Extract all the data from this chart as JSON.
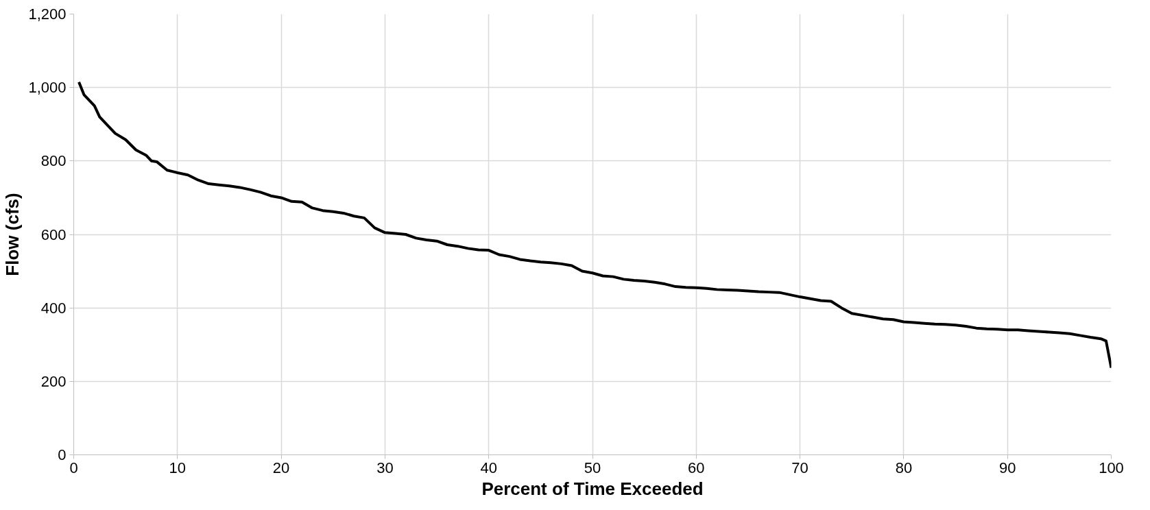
{
  "chart_data": {
    "type": "line",
    "xlabel": "Percent of Time Exceeded",
    "ylabel": "Flow (cfs)",
    "x": [
      0.5,
      1,
      2,
      2.5,
      4,
      5,
      6,
      7,
      7.5,
      8,
      9,
      10,
      11,
      12,
      13,
      14,
      15,
      16,
      17,
      18,
      19,
      20,
      21,
      22,
      23,
      24,
      25,
      26,
      27,
      28,
      29,
      30,
      31,
      32,
      33,
      34,
      35,
      36,
      37,
      38,
      39,
      40,
      41,
      42,
      43,
      44,
      45,
      46,
      47,
      48,
      49,
      50,
      51,
      52,
      53,
      54,
      55,
      56,
      57,
      58,
      59,
      60,
      61,
      62,
      63,
      64,
      65,
      66,
      67,
      68,
      69,
      70,
      71,
      72,
      73,
      74,
      75,
      76,
      77,
      78,
      79,
      80,
      81,
      82,
      83,
      84,
      85,
      86,
      87,
      88,
      89,
      90,
      91,
      92,
      93,
      94,
      95,
      96,
      97,
      98,
      99,
      99.5,
      100
    ],
    "series": [
      {
        "color": "#000000",
        "values": [
          1015,
          980,
          950,
          920,
          875,
          858,
          830,
          815,
          800,
          798,
          775,
          768,
          762,
          748,
          738,
          735,
          732,
          728,
          722,
          715,
          705,
          700,
          690,
          688,
          672,
          665,
          662,
          658,
          650,
          645,
          618,
          605,
          603,
          600,
          590,
          585,
          582,
          572,
          568,
          562,
          558,
          557,
          545,
          540,
          532,
          528,
          525,
          523,
          520,
          515,
          500,
          495,
          487,
          485,
          478,
          475,
          473,
          470,
          465,
          458,
          456,
          455,
          453,
          450,
          449,
          448,
          446,
          444,
          443,
          442,
          436,
          430,
          425,
          420,
          418,
          400,
          385,
          380,
          375,
          370,
          368,
          362,
          360,
          358,
          356,
          355,
          353,
          350,
          345,
          343,
          342,
          340,
          340,
          338,
          336,
          334,
          332,
          330,
          325,
          320,
          316,
          310,
          237
        ]
      }
    ],
    "xlim": [
      0,
      100
    ],
    "ylim": [
      0,
      1200
    ],
    "xticks": [
      0,
      10,
      20,
      30,
      40,
      50,
      60,
      70,
      80,
      90,
      100
    ],
    "yticks": [
      0,
      200,
      400,
      600,
      800,
      {
        "value": 1000,
        "label": "1,000"
      },
      {
        "value": 1200,
        "label": "1,200"
      }
    ],
    "grid": true,
    "line_style": "solid",
    "marker": "none"
  }
}
